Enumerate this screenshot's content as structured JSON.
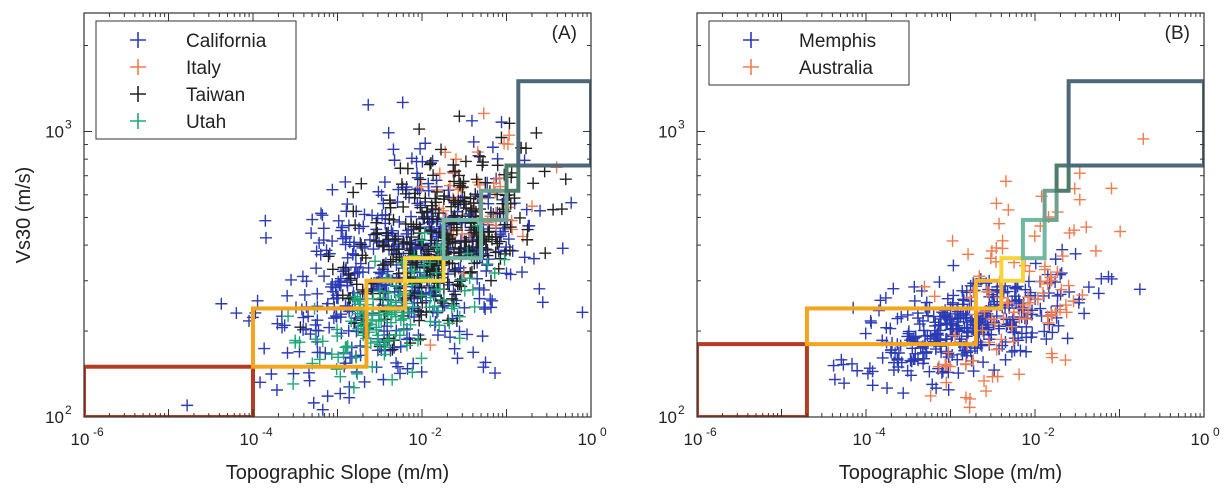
{
  "chart_data": [
    {
      "type": "scatter",
      "panel_label": "(A)",
      "xlabel": "Topographic Slope (m/m)",
      "ylabel": "Vs30 (m/s)",
      "xscale": "log",
      "yscale": "log",
      "xlim": [
        1e-06,
        1
      ],
      "ylim": [
        100,
        2600
      ],
      "x_ticks": [
        {
          "v": 1e-06,
          "b": "10",
          "e": "-6"
        },
        {
          "v": 0.0001,
          "b": "10",
          "e": "-4"
        },
        {
          "v": 0.01,
          "b": "10",
          "e": "-2"
        },
        {
          "v": 1,
          "b": "10",
          "e": "0"
        }
      ],
      "y_ticks": [
        {
          "v": 100,
          "b": "10",
          "e": "2"
        },
        {
          "v": 1000,
          "b": "10",
          "e": "3"
        }
      ],
      "legend_position": "top-left",
      "series": [
        {
          "name": "California",
          "color": "#2b3bb5",
          "center_log10_x": -2.3,
          "spread_log10_x": 0.75,
          "center_log10_vs30": 2.5,
          "spread_log10_vs30": 0.17,
          "trend": 0.1,
          "count": 520
        },
        {
          "name": "Italy",
          "color": "#f07c50",
          "center_log10_x": -1.3,
          "spread_log10_x": 0.4,
          "center_log10_vs30": 2.8,
          "spread_log10_vs30": 0.14,
          "trend": 0.1,
          "count": 45
        },
        {
          "name": "Taiwan",
          "color": "#222222",
          "center_log10_x": -1.8,
          "spread_log10_x": 0.6,
          "center_log10_vs30": 2.62,
          "spread_log10_vs30": 0.14,
          "trend": 0.1,
          "count": 320
        },
        {
          "name": "Utah",
          "color": "#1ea878",
          "center_log10_x": -2.4,
          "spread_log10_x": 0.5,
          "center_log10_vs30": 2.35,
          "spread_log10_vs30": 0.1,
          "trend": 0.1,
          "count": 140
        }
      ],
      "boxes": [
        {
          "x": [
            1e-06,
            0.0001
          ],
          "y": [
            100,
            150
          ],
          "color": "#b53c24"
        },
        {
          "x": [
            0.0001,
            0.0022
          ],
          "y": [
            150,
            240
          ],
          "color": "#f4a51c"
        },
        {
          "x": [
            0.0022,
            0.0063
          ],
          "y": [
            240,
            300
          ],
          "color": "#f6b52a"
        },
        {
          "x": [
            0.0063,
            0.018
          ],
          "y": [
            300,
            360
          ],
          "color": "#f7d43a"
        },
        {
          "x": [
            0.018,
            0.05
          ],
          "y": [
            360,
            490
          ],
          "color": "#72b7a2"
        },
        {
          "x": [
            0.05,
            0.1
          ],
          "y": [
            490,
            620
          ],
          "color": "#6fa090"
        },
        {
          "x": [
            0.1,
            0.138
          ],
          "y": [
            620,
            760
          ],
          "color": "#4d7d6a"
        },
        {
          "x": [
            0.138,
            1
          ],
          "y": [
            760,
            1500
          ],
          "color": "#4d6878"
        }
      ]
    },
    {
      "type": "scatter",
      "panel_label": "(B)",
      "xlabel": "Topographic Slope (m/m)",
      "ylabel": "",
      "xscale": "log",
      "yscale": "log",
      "xlim": [
        1e-06,
        1
      ],
      "ylim": [
        100,
        2600
      ],
      "x_ticks": [
        {
          "v": 1e-06,
          "b": "10",
          "e": "-6"
        },
        {
          "v": 0.0001,
          "b": "10",
          "e": "-4"
        },
        {
          "v": 0.01,
          "b": "10",
          "e": "-2"
        },
        {
          "v": 1,
          "b": "10",
          "e": "0"
        }
      ],
      "y_ticks": [
        {
          "v": 100,
          "b": "10",
          "e": "2"
        },
        {
          "v": 1000,
          "b": "10",
          "e": "3"
        }
      ],
      "legend_position": "top-left",
      "series": [
        {
          "name": "Memphis",
          "color": "#2b3bb5",
          "center_log10_x": -2.8,
          "spread_log10_x": 0.6,
          "center_log10_vs30": 2.32,
          "spread_log10_vs30": 0.08,
          "trend": 0.08,
          "count": 360
        },
        {
          "name": "Australia",
          "color": "#f07c50",
          "center_log10_x": -2.2,
          "spread_log10_x": 0.5,
          "center_log10_vs30": 2.45,
          "spread_log10_vs30": 0.16,
          "trend": 0.2,
          "count": 110
        }
      ],
      "boxes": [
        {
          "x": [
            1e-06,
            2e-05
          ],
          "y": [
            100,
            180
          ],
          "color": "#b53c24"
        },
        {
          "x": [
            2e-05,
            0.002
          ],
          "y": [
            180,
            240
          ],
          "color": "#f4a51c"
        },
        {
          "x": [
            0.002,
            0.004
          ],
          "y": [
            240,
            300
          ],
          "color": "#f6b52a"
        },
        {
          "x": [
            0.004,
            0.0072
          ],
          "y": [
            300,
            360
          ],
          "color": "#f7d43a"
        },
        {
          "x": [
            0.0072,
            0.013
          ],
          "y": [
            360,
            490
          ],
          "color": "#72b7a2"
        },
        {
          "x": [
            0.013,
            0.018
          ],
          "y": [
            490,
            620
          ],
          "color": "#6fa090"
        },
        {
          "x": [
            0.018,
            0.025
          ],
          "y": [
            620,
            760
          ],
          "color": "#4d7d6a"
        },
        {
          "x": [
            0.025,
            1
          ],
          "y": [
            760,
            1500
          ],
          "color": "#4d6878"
        }
      ]
    }
  ]
}
